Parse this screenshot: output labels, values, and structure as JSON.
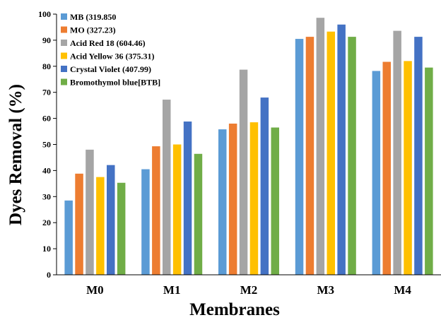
{
  "chart_data": {
    "type": "bar",
    "title": "",
    "xlabel": "Membranes",
    "ylabel": "Dyes Removal (%)",
    "ylim": [
      0,
      100
    ],
    "yticks": [
      0,
      10,
      20,
      30,
      40,
      50,
      60,
      70,
      80,
      90,
      100
    ],
    "grid": false,
    "legend_position": "top-left",
    "categories": [
      "M0",
      "M1",
      "M2",
      "M3",
      "M4"
    ],
    "series": [
      {
        "name": "MB (319.850",
        "color": "#5b9bd5",
        "values": [
          28.5,
          40.5,
          55.8,
          90.5,
          78.2
        ]
      },
      {
        "name": "MO (327.23)",
        "color": "#ed7d31",
        "values": [
          38.8,
          49.3,
          58.0,
          91.3,
          81.7
        ]
      },
      {
        "name": "Acid Red 18 (604.46)",
        "color": "#a5a5a5",
        "values": [
          48.0,
          67.2,
          78.7,
          98.6,
          93.6
        ]
      },
      {
        "name": "Acid Yellow 36 (375.31)",
        "color": "#ffc000",
        "values": [
          37.5,
          50.0,
          58.5,
          93.3,
          82.0
        ]
      },
      {
        "name": "Crystal Violet (407.99)",
        "color": "#4472c4",
        "values": [
          42.1,
          58.8,
          68.0,
          96.0,
          91.3
        ]
      },
      {
        "name": "Bromothymol blue[BTB]",
        "color": "#70ad47",
        "values": [
          35.3,
          46.4,
          56.5,
          91.3,
          79.5
        ]
      }
    ]
  }
}
